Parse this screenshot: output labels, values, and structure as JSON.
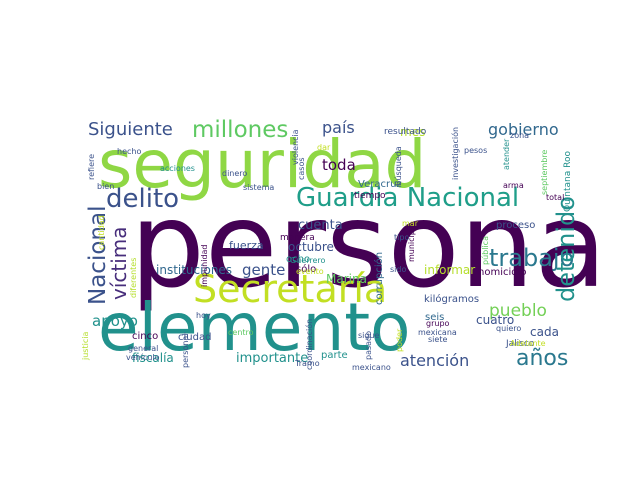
{
  "palette": [
    "#440154",
    "#3b528b",
    "#21918c",
    "#5ec962",
    "#fde725"
  ],
  "words": [
    {
      "text": "persona",
      "weight": 1.0,
      "color": "#440154"
    },
    {
      "text": "seguridad",
      "weight": 0.75,
      "color": "#8fd744"
    },
    {
      "text": "elemento",
      "weight": 0.7,
      "color": "#21918c"
    },
    {
      "text": "Secretaría",
      "weight": 0.42,
      "color": "#c2df23"
    },
    {
      "text": "Guardia Nacional",
      "weight": 0.32,
      "color": "#1f9e89"
    },
    {
      "text": "delito",
      "weight": 0.3,
      "color": "#3b528b"
    },
    {
      "text": "trabajo",
      "weight": 0.26,
      "color": "#2a788e"
    },
    {
      "text": "millones",
      "weight": 0.25,
      "color": "#5ec962"
    },
    {
      "text": "detenido",
      "weight": 0.25,
      "color": "#21918c"
    },
    {
      "text": "Nacional",
      "weight": 0.25,
      "color": "#3b528b"
    },
    {
      "text": "víctima",
      "weight": 0.22,
      "color": "#472d7b"
    },
    {
      "text": "años",
      "weight": 0.22,
      "color": "#2a788e"
    },
    {
      "text": "Siguiente",
      "weight": 0.18,
      "color": "#3b528b"
    },
    {
      "text": "gobierno",
      "weight": 0.18,
      "color": "#31688e"
    },
    {
      "text": "país",
      "weight": 0.17,
      "color": "#3b528b"
    },
    {
      "text": "pueblo",
      "weight": 0.17,
      "color": "#73d056"
    },
    {
      "text": "atención",
      "weight": 0.17,
      "color": "#3b528b"
    },
    {
      "text": "apoyo",
      "weight": 0.15,
      "color": "#21918c"
    },
    {
      "text": "gente",
      "weight": 0.15,
      "color": "#3b528b"
    },
    {
      "text": "toda",
      "weight": 0.14,
      "color": "#440154"
    },
    {
      "text": "cuenta",
      "weight": 0.12,
      "color": "#3b528b"
    },
    {
      "text": "importante",
      "weight": 0.12,
      "color": "#21918c"
    },
    {
      "text": "fiscalía",
      "weight": 0.11,
      "color": "#21918c"
    },
    {
      "text": "mes",
      "weight": 0.11,
      "color": "#b5de2b"
    },
    {
      "text": "octubre",
      "weight": 0.11,
      "color": "#3b528b"
    },
    {
      "text": "cuatro",
      "weight": 0.11,
      "color": "#3b528b"
    },
    {
      "text": "Marina",
      "weight": 0.11,
      "color": "#5ec962"
    },
    {
      "text": "informar",
      "weight": 0.1,
      "color": "#b5de2b"
    },
    {
      "text": "instituciones",
      "weight": 0.1,
      "color": "#31688e"
    },
    {
      "text": "cada",
      "weight": 0.1,
      "color": "#3b528b"
    },
    {
      "text": "fuerza",
      "weight": 0.09,
      "color": "#3b528b"
    },
    {
      "text": "Veracruz",
      "weight": 0.09,
      "color": "#31688e"
    },
    {
      "text": "proceso",
      "weight": 0.08,
      "color": "#3b528b"
    },
    {
      "text": "kilógramos",
      "weight": 0.08,
      "color": "#3b528b"
    },
    {
      "text": "homicidio",
      "weight": 0.08,
      "color": "#440154"
    },
    {
      "text": "corrupción",
      "weight": 0.08,
      "color": "#31688e"
    },
    {
      "text": "seis",
      "weight": 0.08,
      "color": "#31688e"
    },
    {
      "text": "cinco",
      "weight": 0.08,
      "color": "#440154"
    },
    {
      "text": "ciudad",
      "weight": 0.08,
      "color": "#3b528b"
    },
    {
      "text": "ocho",
      "weight": 0.08,
      "color": "#21918c"
    },
    {
      "text": "sólo",
      "weight": 0.08,
      "color": "#440154"
    },
    {
      "text": "parte",
      "weight": 0.08,
      "color": "#21918c"
    },
    {
      "text": "Jalisco",
      "weight": 0.07,
      "color": "#3b528b"
    },
    {
      "text": "tiempo",
      "weight": 0.07,
      "color": "#440154"
    },
    {
      "text": "manera",
      "weight": 0.06,
      "color": "#440154"
    },
    {
      "text": "resultado",
      "weight": 0.06,
      "color": "#3b528b"
    },
    {
      "text": "Quintana Roo",
      "weight": 0.06,
      "color": "#21918c"
    },
    {
      "text": "acciones",
      "weight": 0.06,
      "color": "#21918c"
    },
    {
      "text": "hecho",
      "weight": 0.06,
      "color": "#3b528b"
    },
    {
      "text": "pesos",
      "weight": 0.06,
      "color": "#3b528b"
    },
    {
      "text": "general",
      "weight": 0.06,
      "color": "#3b528b"
    },
    {
      "text": "personal",
      "weight": 0.06,
      "color": "#3b528b"
    },
    {
      "text": "sido",
      "weight": 0.06,
      "color": "#3b528b"
    },
    {
      "text": "sigue",
      "weight": 0.06,
      "color": "#3b528b"
    },
    {
      "text": "grupo",
      "weight": 0.06,
      "color": "#440154"
    },
    {
      "text": "quiero",
      "weight": 0.06,
      "color": "#3b528b"
    },
    {
      "text": "justicia",
      "weight": 0.06,
      "color": "#b5de2b"
    },
    {
      "text": "diferentes",
      "weight": 0.05,
      "color": "#b5de2b"
    },
    {
      "text": "impunidad",
      "weight": 0.05,
      "color": "#440154"
    },
    {
      "text": "tipo",
      "weight": 0.05,
      "color": "#3b528b"
    },
    {
      "text": "municipio",
      "weight": 0.05,
      "color": "#440154"
    },
    {
      "text": "vehículo",
      "weight": 0.05,
      "color": "#3b528b"
    },
    {
      "text": "hoy",
      "weight": 0.05,
      "color": "#3b528b"
    },
    {
      "text": "casos",
      "weight": 0.05,
      "color": "#3b528b"
    },
    {
      "text": "atender",
      "weight": 0.05,
      "color": "#21918c"
    },
    {
      "text": "septiembre",
      "weight": 0.05,
      "color": "#5ec962"
    },
    {
      "text": "investigación",
      "weight": 0.05,
      "color": "#3b528b"
    },
    {
      "text": "Búsqueda",
      "weight": 0.05,
      "color": "#3b528b"
    },
    {
      "text": "zona",
      "weight": 0.05,
      "color": "#3b528b"
    },
    {
      "text": "arma",
      "weight": 0.05,
      "color": "#440154"
    },
    {
      "text": "total",
      "weight": 0.05,
      "color": "#440154"
    },
    {
      "text": "dinero",
      "weight": 0.05,
      "color": "#3b528b"
    },
    {
      "text": "sistema",
      "weight": 0.05,
      "color": "#3b528b"
    },
    {
      "text": "refiere",
      "weight": 0.05,
      "color": "#3b528b"
    },
    {
      "text": "bien",
      "weight": 0.05,
      "color": "#3b528b"
    },
    {
      "text": "cantidad",
      "weight": 0.05,
      "color": "#c2df23"
    },
    {
      "text": "dar",
      "weight": 0.05,
      "color": "#c2df23"
    },
    {
      "text": "mar",
      "weight": 0.05,
      "color": "#c2df23"
    },
    {
      "text": "violencia",
      "weight": 0.05,
      "color": "#3b528b"
    },
    {
      "text": "Guerrero",
      "weight": 0.05,
      "color": "#21918c"
    },
    {
      "text": "evento",
      "weight": 0.05,
      "color": "#c2df23"
    },
    {
      "text": "mexicana",
      "weight": 0.05,
      "color": "#3b528b"
    },
    {
      "text": "pública",
      "weight": 0.05,
      "color": "#5ec962"
    },
    {
      "text": "Adelante",
      "weight": 0.05,
      "color": "#c2df23"
    },
    {
      "text": "centro",
      "weight": 0.05,
      "color": "#5ec962"
    },
    {
      "text": "coordinación",
      "weight": 0.05,
      "color": "#3b528b"
    },
    {
      "text": "pasado",
      "weight": 0.05,
      "color": "#3b528b"
    },
    {
      "text": "poder",
      "weight": 0.05,
      "color": "#c2df23"
    },
    {
      "text": "siete",
      "weight": 0.05,
      "color": "#3b528b"
    },
    {
      "text": "Tramo",
      "weight": 0.05,
      "color": "#3b528b"
    },
    {
      "text": "mexicano",
      "weight": 0.05,
      "color": "#3b528b"
    }
  ]
}
